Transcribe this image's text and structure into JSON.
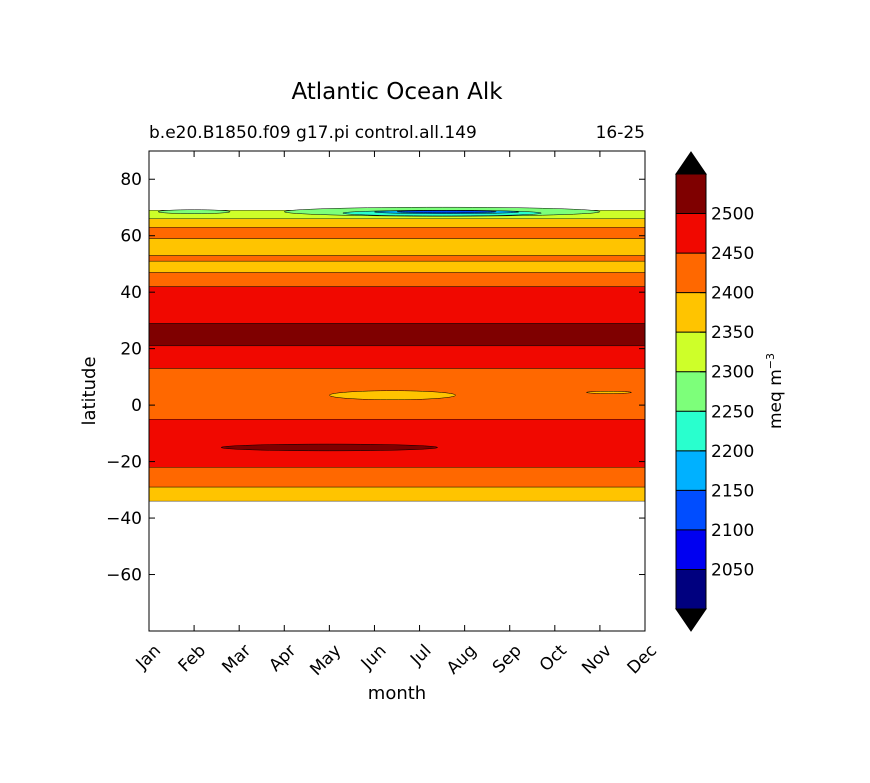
{
  "chart_data": {
    "type": "contourf",
    "title": "Atlantic Ocean Alk",
    "subtitle_left": "b.e20.B1850.f09 g17.pi control.all.149",
    "subtitle_right": "16-25",
    "xlabel": "month",
    "ylabel": "latitude",
    "x_ticks": [
      "Jan",
      "Feb",
      "Mar",
      "Apr",
      "May",
      "Jun",
      "Jul",
      "Aug",
      "Sep",
      "Oct",
      "Nov",
      "Dec"
    ],
    "xlim": [
      0,
      11
    ],
    "ylim": [
      -80,
      90
    ],
    "y_ticks": [
      80,
      60,
      40,
      20,
      0,
      -20,
      -40,
      -60
    ],
    "y_tick_labels": [
      "80",
      "60",
      "40",
      "20",
      "0",
      "−20",
      "−40",
      "−60"
    ],
    "grid": false,
    "colorbar": {
      "label": "meq m",
      "label_exponent": "−3",
      "extend": "both",
      "levels": [
        2000,
        2050,
        2100,
        2150,
        2200,
        2250,
        2300,
        2350,
        2400,
        2450,
        2500,
        2550
      ],
      "tick_values": [
        2050,
        2100,
        2150,
        2200,
        2250,
        2300,
        2350,
        2400,
        2450,
        2500
      ],
      "tick_labels": [
        "2050",
        "2100",
        "2150",
        "2200",
        "2250",
        "2300",
        "2350",
        "2400",
        "2450",
        "2500"
      ],
      "colors": [
        "#00007f",
        "#0000f1",
        "#004dff",
        "#00b1ff",
        "#29ffce",
        "#7dff7a",
        "#ceff29",
        "#ffc400",
        "#ff6800",
        "#f10800",
        "#7f0000"
      ],
      "over_color": "#000000",
      "under_color": "#000000"
    },
    "latitude_bands": [
      {
        "from": -34,
        "to": -29,
        "value": 2375,
        "color": "#ffc400"
      },
      {
        "from": -29,
        "to": -22,
        "value": 2425,
        "color": "#ff6800"
      },
      {
        "from": -22,
        "to": -5,
        "value": 2475,
        "color": "#f10800"
      },
      {
        "from": -5,
        "to": 13,
        "value": 2425,
        "color": "#ff6800"
      },
      {
        "from": 13,
        "to": 21,
        "value": 2475,
        "color": "#f10800"
      },
      {
        "from": 21,
        "to": 29,
        "value": 2525,
        "color": "#7f0000"
      },
      {
        "from": 29,
        "to": 42,
        "value": 2475,
        "color": "#f10800"
      },
      {
        "from": 42,
        "to": 47,
        "value": 2425,
        "color": "#ff6800"
      },
      {
        "from": 47,
        "to": 51,
        "value": 2375,
        "color": "#ffc400"
      },
      {
        "from": 51,
        "to": 53,
        "value": 2425,
        "color": "#ff6800"
      },
      {
        "from": 53,
        "to": 59,
        "value": 2375,
        "color": "#ffc400"
      },
      {
        "from": 59,
        "to": 63,
        "value": 2425,
        "color": "#ff6800"
      },
      {
        "from": 63,
        "to": 66,
        "value": 2375,
        "color": "#ffc400"
      },
      {
        "from": 66,
        "to": 69,
        "value": 2325,
        "color": "#ceff29"
      }
    ],
    "anomalies": [
      {
        "month": 4.0,
        "lat": -15.0,
        "d_month": 2.4,
        "d_lat": 1.2,
        "value": 2525,
        "color": "#7f0000"
      },
      {
        "month": 5.4,
        "lat": 3.5,
        "d_month": 1.4,
        "d_lat": 1.6,
        "value": 2375,
        "color": "#ffc400"
      },
      {
        "month": 10.2,
        "lat": 4.5,
        "d_month": 0.5,
        "d_lat": 0.4,
        "value": 2375,
        "color": "#ffc400"
      },
      {
        "month": 6.5,
        "lat": 68.5,
        "d_month": 3.5,
        "d_lat": 1.6,
        "value": 2275,
        "color": "#7dff7a"
      },
      {
        "month": 6.5,
        "lat": 68.0,
        "d_month": 2.2,
        "d_lat": 1.0,
        "value": 2225,
        "color": "#29ffce"
      },
      {
        "month": 6.6,
        "lat": 68.4,
        "d_month": 1.6,
        "d_lat": 0.6,
        "value": 2175,
        "color": "#00b1ff"
      },
      {
        "month": 6.6,
        "lat": 68.5,
        "d_month": 1.1,
        "d_lat": 0.4,
        "value": 2125,
        "color": "#004dff"
      },
      {
        "month": 1.0,
        "lat": 68.5,
        "d_month": 0.8,
        "d_lat": 0.7,
        "value": 2275,
        "color": "#7dff7a"
      }
    ]
  }
}
